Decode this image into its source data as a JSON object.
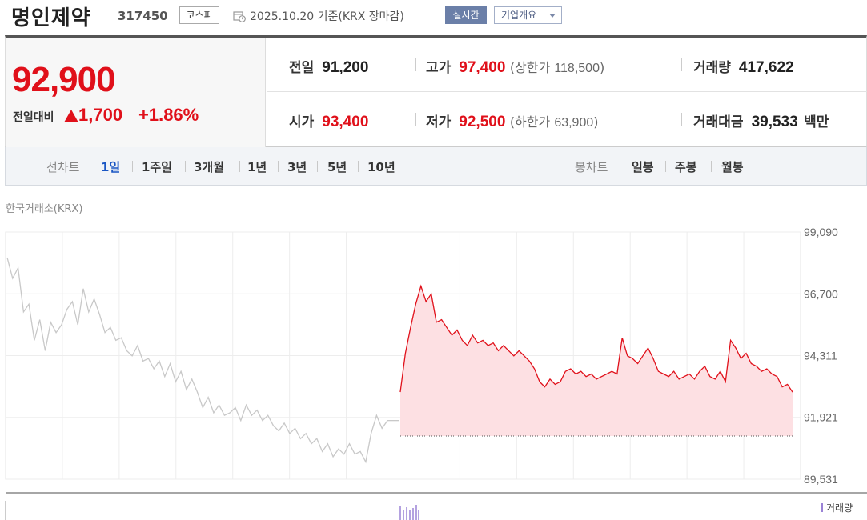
{
  "header": {
    "stock_name": "명인제약",
    "stock_code": "317450",
    "market": "코스피",
    "date_text": "2025.10.20  기준(KRX 장마감)",
    "realtime_label": "실시간",
    "company_label": "기업개요"
  },
  "price": {
    "current": "92,900",
    "change_label": "전일대비",
    "change_value": "1,700",
    "change_rate": "+1.86%",
    "direction": "up"
  },
  "stats": {
    "prev_close_label": "전일",
    "prev_close": "91,200",
    "high_label": "고가",
    "high": "97,400",
    "upper_limit_label": "(상한가",
    "upper_limit": "118,500",
    "upper_limit_close": ")",
    "volume_label": "거래량",
    "volume": "417,622",
    "open_label": "시가",
    "open": "93,400",
    "low_label": "저가",
    "low": "92,500",
    "lower_limit_label": "(하한가",
    "lower_limit": "63,900",
    "lower_limit_close": ")",
    "trade_value_label": "거래대금",
    "trade_value": "39,533",
    "trade_value_unit": "백만"
  },
  "period": {
    "line_title": "선차트",
    "line_options": [
      "1일",
      "1주일",
      "3개월",
      "1년",
      "3년",
      "5년",
      "10년"
    ],
    "active": "1일",
    "candle_title": "봉차트",
    "candle_options": [
      "일봉",
      "주봉",
      "월봉"
    ]
  },
  "exchange_label": "한국거래소(KRX)",
  "volume_legend": "거래량",
  "colors": {
    "up": "#e0101a",
    "prev_day_line": "#c8c8c8",
    "fill": "#fde0e3",
    "volume": "#9a82d6",
    "active_tab": "#1a56c4"
  },
  "chart_data": {
    "type": "line",
    "y_ticks": [
      89531,
      91921,
      94311,
      96700,
      99090
    ],
    "y_tick_labels": [
      "89,531",
      "91,921",
      "94,311",
      "96,700",
      "99,090"
    ],
    "ylim": [
      89531,
      99090
    ],
    "x_divisions": 14,
    "prev_close": 91200,
    "series": [
      {
        "role": "previous-day",
        "values": [
          98100,
          97300,
          97700,
          96000,
          96300,
          94900,
          95700,
          94500,
          95600,
          95200,
          95500,
          96100,
          96400,
          95500,
          96900,
          96000,
          96500,
          95900,
          95200,
          95400,
          94900,
          95000,
          94500,
          94300,
          94700,
          94100,
          94200,
          93800,
          94100,
          93500,
          94000,
          93300,
          93700,
          93000,
          93400,
          92900,
          92300,
          92700,
          92100,
          92400,
          92000,
          92100,
          92300,
          91800,
          92400,
          92000,
          92200,
          91800,
          92000,
          91600,
          91400,
          91700,
          91300,
          91500,
          91100,
          91300,
          90900,
          91100,
          90600,
          90900,
          90400,
          90700,
          90500,
          90900,
          90500,
          90600,
          90200,
          91300,
          92000,
          91500,
          91800
        ]
      },
      {
        "role": "today",
        "values": [
          92900,
          94400,
          95400,
          96300,
          97000,
          96400,
          96700,
          95600,
          95700,
          95400,
          95100,
          95300,
          94900,
          94700,
          95100,
          94800,
          94900,
          94700,
          94800,
          94500,
          94700,
          94500,
          94300,
          94500,
          94300,
          94100,
          93800,
          93300,
          93100,
          93400,
          93200,
          93300,
          93700,
          93800,
          93600,
          93700,
          93500,
          93600,
          93400,
          93500,
          93600,
          93700,
          93600,
          95000,
          94300,
          94200,
          94000,
          94300,
          94600,
          94200,
          93700,
          93600,
          93500,
          93700,
          93400,
          93500,
          93600,
          93400,
          93700,
          93900,
          93500,
          93400,
          93700,
          93300,
          94900,
          94600,
          94200,
          94400,
          94000,
          93900,
          93700,
          93800,
          93600,
          93500,
          93100,
          93200,
          92900
        ]
      }
    ]
  }
}
